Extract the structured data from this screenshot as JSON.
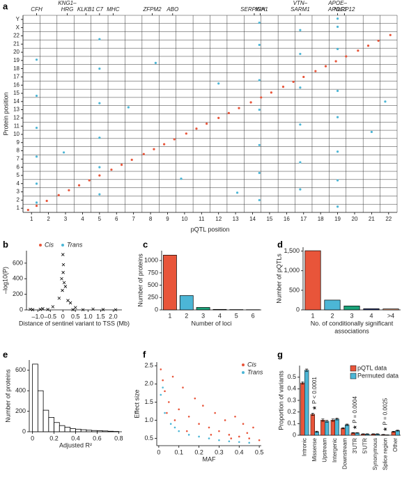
{
  "chart_data": [
    {
      "panel": "a",
      "type": "scatter",
      "xlabel": "pQTL position",
      "ylabel": "Protein position",
      "xlim": [
        0,
        22
      ],
      "ylim": [
        0,
        24
      ],
      "xticks": [
        {
          "value": 0.5,
          "label": "1"
        },
        {
          "value": 1.5,
          "label": "2"
        },
        {
          "value": 2.5,
          "label": "3"
        },
        {
          "value": 3.5,
          "label": "4"
        },
        {
          "value": 4.5,
          "label": "5"
        },
        {
          "value": 5.5,
          "label": "6"
        },
        {
          "value": 6.5,
          "label": "7"
        },
        {
          "value": 7.5,
          "label": "8"
        },
        {
          "value": 8.5,
          "label": "9"
        },
        {
          "value": 9.5,
          "label": "10"
        },
        {
          "value": 10.5,
          "label": "11"
        },
        {
          "value": 11.5,
          "label": "12"
        },
        {
          "value": 12.5,
          "label": "13"
        },
        {
          "value": 13.5,
          "label": "14"
        },
        {
          "value": 14.5,
          "label": "15"
        },
        {
          "value": 15.5,
          "label": "16"
        },
        {
          "value": 16.5,
          "label": "17"
        },
        {
          "value": 17.5,
          "label": "18"
        },
        {
          "value": 18.5,
          "label": "19"
        },
        {
          "value": 19.5,
          "label": "20"
        },
        {
          "value": 20.5,
          "label": "21"
        },
        {
          "value": 21.5,
          "label": "22"
        }
      ],
      "yticks": [
        {
          "value": 0.5,
          "label": "1"
        },
        {
          "value": 1.5,
          "label": "2"
        },
        {
          "value": 2.5,
          "label": "3"
        },
        {
          "value": 3.5,
          "label": "4"
        },
        {
          "value": 4.5,
          "label": "5"
        },
        {
          "value": 5.5,
          "label": "6"
        },
        {
          "value": 6.5,
          "label": "7"
        },
        {
          "value": 7.5,
          "label": "8"
        },
        {
          "value": 8.5,
          "label": "9"
        },
        {
          "value": 9.5,
          "label": "10"
        },
        {
          "value": 10.5,
          "label": "11"
        },
        {
          "value": 11.5,
          "label": "12"
        },
        {
          "value": 12.5,
          "label": "13"
        },
        {
          "value": 13.5,
          "label": "14"
        },
        {
          "value": 14.5,
          "label": "15"
        },
        {
          "value": 15.5,
          "label": "16"
        },
        {
          "value": 16.5,
          "label": "17"
        },
        {
          "value": 17.5,
          "label": "18"
        },
        {
          "value": 18.5,
          "label": "19"
        },
        {
          "value": 19.5,
          "label": "20"
        },
        {
          "value": 20.5,
          "label": "21"
        },
        {
          "value": 21.5,
          "label": "22"
        },
        {
          "value": 22.5,
          "label": "X"
        },
        {
          "value": 23.5,
          "label": "Y"
        }
      ],
      "xgrid": [
        1,
        2,
        3,
        4,
        5,
        6,
        7,
        8,
        9,
        10,
        11,
        12,
        13,
        14,
        15,
        16,
        17,
        18,
        19,
        20,
        21,
        22
      ],
      "ygrid": [
        1,
        2,
        3,
        4,
        5,
        6,
        7,
        8,
        9,
        10,
        11,
        12,
        13,
        14,
        15,
        16,
        17,
        18,
        19,
        20,
        21,
        22,
        23,
        24
      ],
      "annotations": [
        {
          "text": [
            "CFH"
          ],
          "x": 0.8
        },
        {
          "text": [
            "KNG1–",
            "HRG"
          ],
          "x": 2.6
        },
        {
          "text": [
            "KLKB1"
          ],
          "x": 3.7
        },
        {
          "text": [
            "C7"
          ],
          "x": 4.5
        },
        {
          "text": [
            "MHC"
          ],
          "x": 5.3
        },
        {
          "text": [
            "ZFPM2"
          ],
          "x": 7.6
        },
        {
          "text": [
            "ABO"
          ],
          "x": 8.8
        },
        {
          "text": [
            "SERPINA1"
          ],
          "x": 13.6
        },
        {
          "text": [
            "IGH"
          ],
          "x": 13.95
        },
        {
          "text": [
            "VTN–",
            "SARM1"
          ],
          "x": 16.3
        },
        {
          "text": [
            "APOE–",
            "APOC1"
          ],
          "x": 18.5
        },
        {
          "text": [
            "NLRP12"
          ],
          "x": 18.9
        }
      ],
      "series": [
        {
          "name": "Cis",
          "color": "#e8553a",
          "x": [
            0.3,
            0.8,
            1.4,
            2.1,
            2.7,
            3.3,
            3.9,
            4.5,
            5.2,
            5.8,
            6.4,
            7.1,
            7.7,
            8.3,
            8.9,
            9.6,
            10.2,
            10.8,
            11.5,
            12.1,
            12.7,
            13.4,
            14,
            14.6,
            15.3,
            15.9,
            16.5,
            17.2,
            17.8,
            18.4,
            19,
            19.7,
            20.3,
            20.9,
            21.6
          ],
          "values": [
            0.3,
            0.8,
            1.4,
            2.1,
            2.7,
            3.3,
            3.9,
            4.5,
            5.2,
            5.8,
            6.4,
            7.1,
            7.7,
            8.3,
            8.9,
            9.6,
            10.2,
            10.8,
            11.5,
            12.1,
            12.7,
            13.4,
            14,
            14.6,
            15.3,
            15.9,
            16.5,
            17.2,
            17.8,
            18.4,
            19,
            19.7,
            20.3,
            20.9,
            21.6
          ]
        },
        {
          "name": "Trans",
          "color": "#4cb6d6",
          "x": [
            0.8,
            0.8,
            0.8,
            0.8,
            0.8,
            0.8,
            4.5,
            4.5,
            4.5,
            4.5,
            4.5,
            4.5,
            13.9,
            13.9,
            13.9,
            13.9,
            13.9,
            13.9,
            13.9,
            16.3,
            16.3,
            16.3,
            16.3,
            16.3,
            16.3,
            18.5,
            18.5,
            18.5,
            18.5,
            18.5,
            18.5,
            18.5,
            18.5,
            2.4,
            6.2,
            9.3,
            11.5,
            20.5,
            7.8,
            12.6,
            21.3
          ],
          "values": [
            1.2,
            3.5,
            6.8,
            10.3,
            14.2,
            18.6,
            2.2,
            5.5,
            9.1,
            13.3,
            17.5,
            21.1,
            1.5,
            4.8,
            8.2,
            12.5,
            16.1,
            20.4,
            23.1,
            2.8,
            6.1,
            10.7,
            15.2,
            19.3,
            22.2,
            0.7,
            3.9,
            7.4,
            11.6,
            14.8,
            19.9,
            22.6,
            23.6,
            7.3,
            12.8,
            4.1,
            15.7,
            9.8,
            18.2,
            2.4,
            13.5
          ]
        }
      ]
    },
    {
      "panel": "b",
      "type": "scatter",
      "xlabel": "Distance of sentinel variant to TSS (Mb)",
      "ylabel": "–log10(P)",
      "xlim": [
        -1.45,
        2.35
      ],
      "ylim": [
        0,
        760
      ],
      "legend": "top",
      "marker": "x",
      "marker_color": "#000000",
      "xticks": [
        {
          "value": -1,
          "label": "–1.0"
        },
        {
          "value": -0.5,
          "label": "–0.5"
        },
        0,
        0.5,
        {
          "value": 1,
          "label": "1.0"
        },
        1.5,
        {
          "value": 2,
          "label": "2.0"
        }
      ],
      "yticks": [
        0,
        200,
        400,
        600
      ],
      "series": [
        {
          "name": "Cis",
          "color": "#e8553a",
          "x": [
            0,
            0.02,
            -0.05,
            0.1,
            -0.15,
            0.3,
            -0.4,
            0.05,
            -0.02,
            0.2,
            0.5,
            -0.8,
            1.2,
            -1.3,
            0.01
          ],
          "values": [
            710,
            580,
            400,
            300,
            150,
            90,
            40,
            350,
            250,
            120,
            30,
            15,
            10,
            8,
            480
          ]
        },
        {
          "name": "Trans",
          "color": "#4cb6d6",
          "x": [
            -1.2,
            -0.6,
            0.8,
            1.6,
            2.1,
            -0.9,
            0.4
          ],
          "values": [
            3,
            5,
            2,
            4,
            2,
            6,
            3
          ]
        }
      ]
    },
    {
      "panel": "c",
      "type": "bar",
      "xlabel": "Number of loci",
      "ylabel": "Number of proteins",
      "categories": [
        "1",
        "2",
        "3",
        "4",
        "5",
        "6"
      ],
      "values": [
        1110,
        290,
        50,
        10,
        6,
        4
      ],
      "colors": [
        "#e8553a",
        "#4cb6d6",
        "#1aa37a",
        "#2f3f78",
        "#f4a582",
        "#7a7a7a"
      ],
      "ylim": [
        0,
        1200
      ],
      "yticks": [
        0,
        250,
        500,
        750,
        1000
      ]
    },
    {
      "panel": "d",
      "type": "bar",
      "xlabel": [
        "No. of conditionally significant",
        "associations"
      ],
      "ylabel": "Number of pQTLs",
      "categories": [
        "1",
        "2",
        "3",
        "4",
        ">4"
      ],
      "values": [
        1510,
        250,
        100,
        30,
        25
      ],
      "colors": [
        "#e8553a",
        "#4cb6d6",
        "#1aa37a",
        "#2f3f78",
        "#f4a582"
      ],
      "ylim": [
        0,
        1600
      ],
      "yticks": [
        0,
        500,
        {
          "value": 1000,
          "label": "1,000"
        },
        {
          "value": 1500,
          "label": "1,500"
        }
      ]
    },
    {
      "panel": "e",
      "type": "histogram",
      "xlabel": "Adjusted R²",
      "ylabel": "Number of proteins",
      "bins": [
        0,
        0.05,
        0.1,
        0.15,
        0.2,
        0.25,
        0.3,
        0.35,
        0.4,
        0.45,
        0.5,
        0.55,
        0.6,
        0.65,
        0.7,
        0.75,
        0.8
      ],
      "values": [
        660,
        400,
        210,
        140,
        90,
        60,
        45,
        30,
        25,
        20,
        15,
        12,
        10,
        8,
        5,
        3
      ],
      "xlim": [
        -0.03,
        0.83
      ],
      "ylim": [
        0,
        700
      ],
      "xticks": [
        0,
        0.2,
        0.4,
        0.6,
        0.8
      ],
      "yticks": [
        0,
        200,
        400,
        600
      ]
    },
    {
      "panel": "f",
      "type": "scatter",
      "xlabel": "MAF",
      "ylabel": "Effect size",
      "legend": "top-right",
      "xlim": [
        -0.01,
        0.51
      ],
      "ylim": [
        0.3,
        2.6
      ],
      "xticks": [
        0,
        0.1,
        0.2,
        0.3,
        0.4,
        0.5
      ],
      "yticks": [
        0.5,
        {
          "value": 1,
          "label": "1.0"
        },
        1.5,
        {
          "value": 2,
          "label": "2.0"
        },
        2.5
      ],
      "series": [
        {
          "name": "Cis",
          "color": "#e8553a",
          "x": [
            0.01,
            0.02,
            0.03,
            0.05,
            0.07,
            0.1,
            0.12,
            0.15,
            0.18,
            0.2,
            0.22,
            0.25,
            0.28,
            0.3,
            0.33,
            0.35,
            0.38,
            0.4,
            0.42,
            0.45,
            0.47,
            0.5,
            0.04,
            0.08,
            0.14,
            0.26,
            0.36,
            0.44
          ],
          "values": [
            2.4,
            2.1,
            1.8,
            1.5,
            2.2,
            1.3,
            1.9,
            1.1,
            1.6,
            0.9,
            1.4,
            0.8,
            1.2,
            0.7,
            1,
            0.6,
            1.1,
            0.55,
            0.9,
            0.5,
            0.8,
            0.45,
            1.2,
            1,
            0.7,
            0.6,
            0.5,
            0.65
          ]
        },
        {
          "name": "Trans",
          "color": "#4cb6d6",
          "x": [
            0.01,
            0.03,
            0.06,
            0.1,
            0.15,
            0.2,
            0.25,
            0.3,
            0.35,
            0.4,
            0.45,
            0.02,
            0.08
          ],
          "values": [
            1.7,
            1.2,
            0.9,
            0.7,
            0.6,
            0.55,
            0.5,
            0.45,
            0.42,
            0.4,
            0.38,
            1.9,
            0.8
          ]
        }
      ]
    },
    {
      "panel": "g",
      "type": "bar",
      "ylabel": "Proportion of variants",
      "legend": "top-right",
      "categories": [
        "Intronic",
        "Missense",
        "Upstream",
        "Intergenic",
        "Downstream",
        "3′UTR",
        "5′UTR",
        "Synonymous",
        "Splice region",
        "Other"
      ],
      "ylim": [
        0,
        0.6
      ],
      "yticks": [
        0,
        0.1,
        0.2,
        0.3,
        0.4,
        0.5
      ],
      "annotations": [
        {
          "text": "★ P < 0.0001",
          "category": "Missense"
        },
        {
          "text": "★ P = 0.0004",
          "category": "3′UTR"
        },
        {
          "text": "★ P = 0.0025",
          "category": "Splice region"
        }
      ],
      "series": [
        {
          "name": "pQTL data",
          "color": "#e8553a",
          "values": [
            0.45,
            0.18,
            0.13,
            0.13,
            0.06,
            0.02,
            0.01,
            0.01,
            0.005,
            0.03
          ],
          "errors": [
            0.01,
            0.01,
            0.01,
            0.01,
            0.005,
            0.003,
            0.002,
            0.002,
            0.002,
            0.004
          ]
        },
        {
          "name": "Permuted data",
          "color": "#4cb6d6",
          "values": [
            0.56,
            0.03,
            0.12,
            0.14,
            0.09,
            0.02,
            0.01,
            0.01,
            0.002,
            0.04
          ],
          "errors": [
            0.01,
            0.005,
            0.008,
            0.008,
            0.006,
            0.002,
            0.002,
            0.002,
            0.001,
            0.004
          ]
        }
      ]
    }
  ]
}
